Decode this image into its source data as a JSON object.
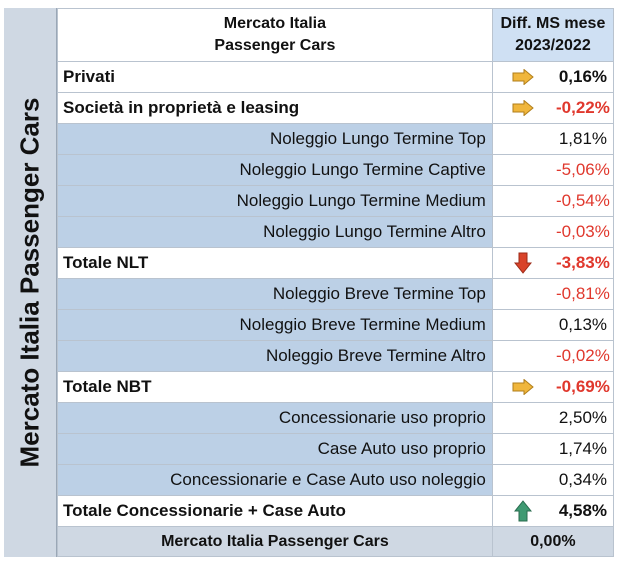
{
  "side_label": "Mercato Italia Passenger Cars",
  "header": {
    "col1_line1": "Mercato Italia",
    "col1_line2": "Passenger Cars",
    "col2_line1": "Diff. MS mese",
    "col2_line2": "2023/2022"
  },
  "rows": [
    {
      "label": "Privati",
      "value": "0,16%",
      "type": "total",
      "icon": "arrow-right-icon",
      "negative": false
    },
    {
      "label": "Società in proprietà e leasing",
      "value": "-0,22%",
      "type": "total",
      "icon": "arrow-right-icon",
      "negative": true
    },
    {
      "label": "Noleggio Lungo Termine Top",
      "value": "1,81%",
      "type": "sub",
      "negative": false
    },
    {
      "label": "Noleggio Lungo Termine Captive",
      "value": "-5,06%",
      "type": "sub",
      "negative": true
    },
    {
      "label": "Noleggio Lungo Termine Medium",
      "value": "-0,54%",
      "type": "sub",
      "negative": true
    },
    {
      "label": "Noleggio Lungo Termine Altro",
      "value": "-0,03%",
      "type": "sub",
      "negative": true
    },
    {
      "label": "Totale NLT",
      "value": "-3,83%",
      "type": "total",
      "icon": "arrow-down-icon",
      "negative": true
    },
    {
      "label": "Noleggio Breve Termine Top",
      "value": "-0,81%",
      "type": "sub",
      "negative": true
    },
    {
      "label": "Noleggio Breve Termine Medium",
      "value": "0,13%",
      "type": "sub",
      "negative": false
    },
    {
      "label": "Noleggio Breve Termine Altro",
      "value": "-0,02%",
      "type": "sub",
      "negative": true
    },
    {
      "label": "Totale NBT",
      "value": "-0,69%",
      "type": "total",
      "icon": "arrow-right-icon",
      "negative": true
    },
    {
      "label": "Concessionarie uso proprio",
      "value": "2,50%",
      "type": "sub",
      "negative": false
    },
    {
      "label": "Case Auto uso proprio",
      "value": "1,74%",
      "type": "sub",
      "negative": false
    },
    {
      "label": "Concessionarie e Case Auto uso noleggio",
      "value": "0,34%",
      "type": "sub",
      "negative": false
    },
    {
      "label": "Totale Concessionarie + Case Auto",
      "value": "4,58%",
      "type": "total",
      "icon": "arrow-up-icon",
      "negative": false
    }
  ],
  "footer": {
    "label": "Mercato Italia Passenger Cars",
    "value": "0,00%"
  },
  "colors": {
    "sub_label_bg": "#bcd0e6",
    "header_value_bg": "#cfe0f3",
    "side_bg": "#cfd8e3",
    "negative_text": "#e0382d",
    "arrow_right": "#f0b63c",
    "arrow_down": "#d9432a",
    "arrow_up": "#3f9a72"
  }
}
